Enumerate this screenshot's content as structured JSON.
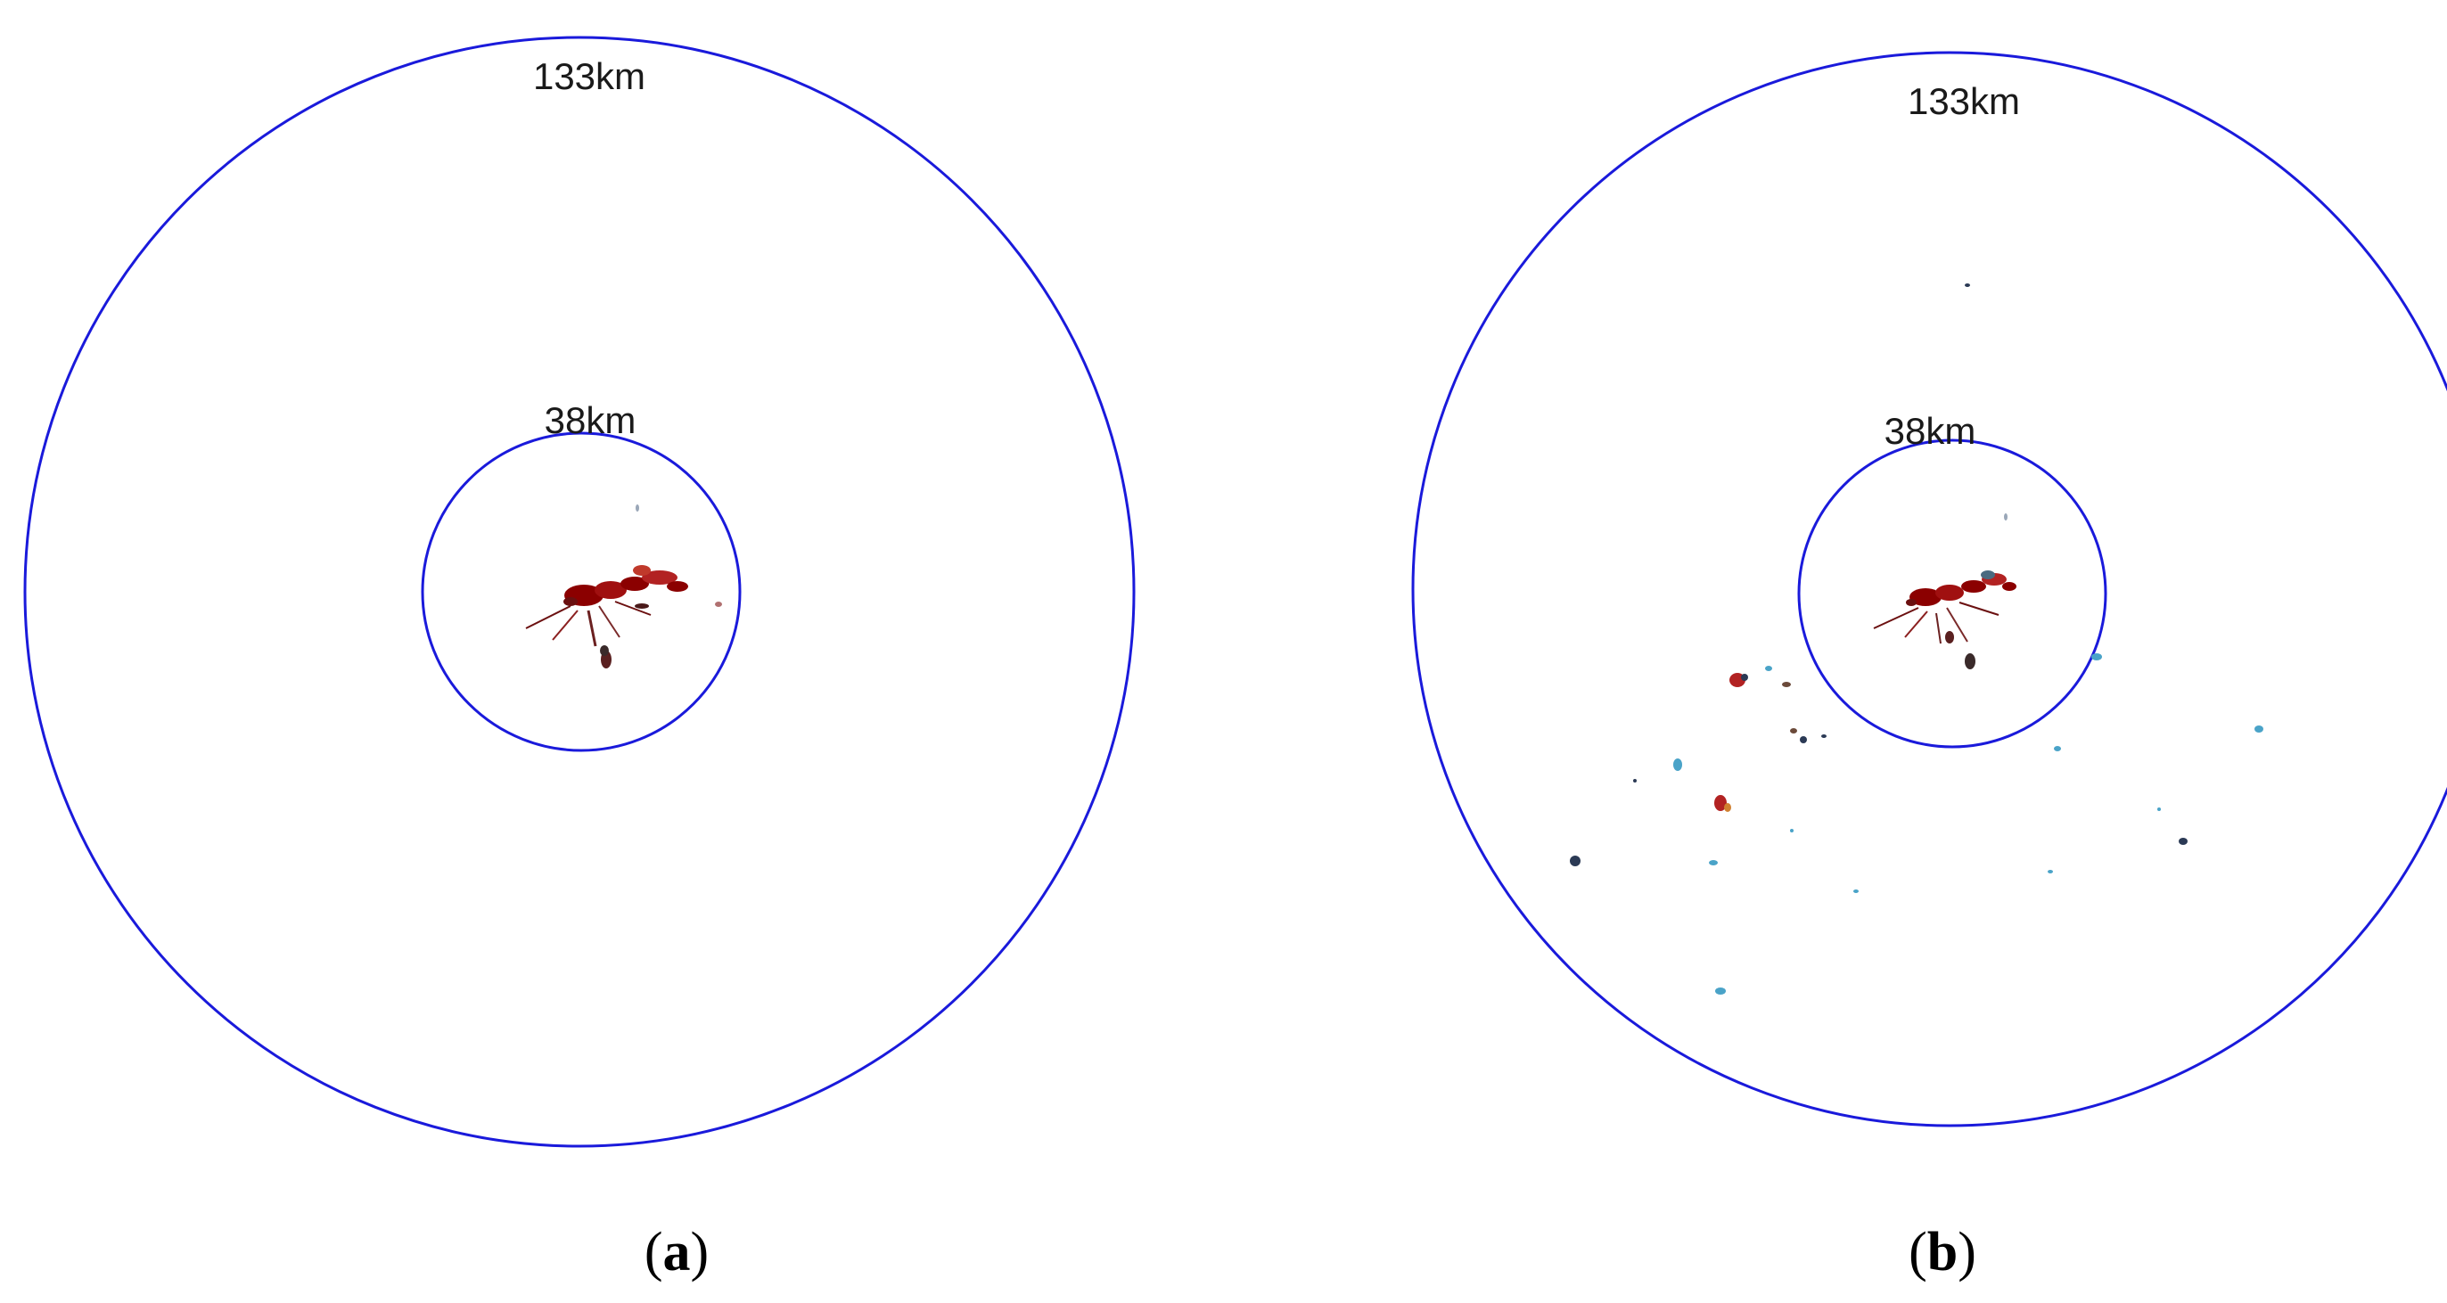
{
  "figure": {
    "panels": [
      {
        "id": "a",
        "caption_open": "(",
        "caption_letter": "a",
        "caption_close": ")",
        "outer_ring_label": "133km",
        "inner_ring_label": "38km"
      },
      {
        "id": "b",
        "caption_open": "(",
        "caption_letter": "b",
        "caption_close": ")",
        "outer_ring_label": "133km",
        "inner_ring_label": "38km"
      }
    ],
    "colors": {
      "ring": "#1a1adb",
      "echo_strong": "#8b0000",
      "echo_medium": "#c0392b",
      "echo_weak": "#4aa3c8",
      "echo_dark": "#2b3a55"
    }
  }
}
